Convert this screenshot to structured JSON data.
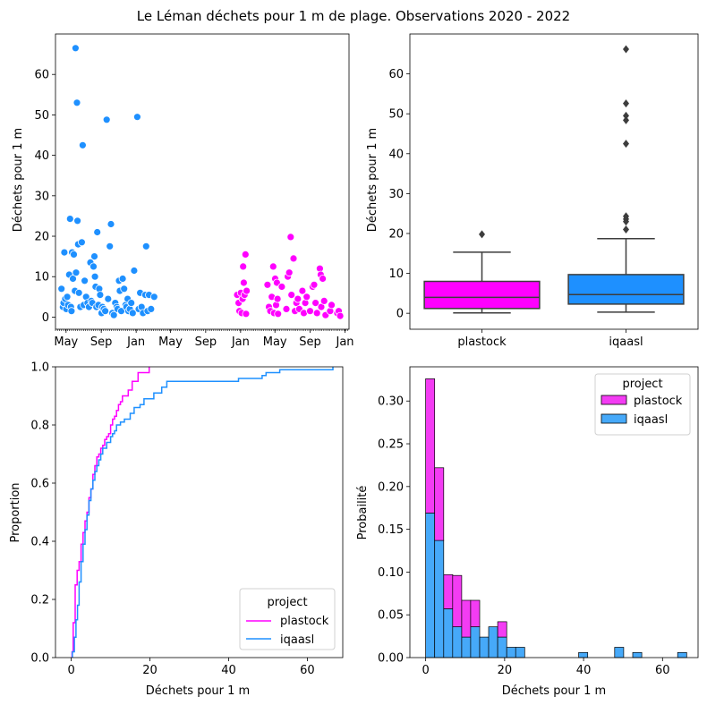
{
  "title": "Le Léman déchets pour 1 m de plage. Observations 2020 - 2022",
  "colors": {
    "plastock": "#ff00ff",
    "iqaasl": "#1e90ff",
    "plastock_fill": "#f33cf3",
    "iqaasl_fill": "#46a9f9"
  },
  "chart_data": [
    {
      "type": "scatter",
      "ylabel": "Déchets pour 1 m",
      "xlabel": "",
      "ylim": [
        -3,
        70
      ],
      "yticks": [
        0,
        10,
        20,
        30,
        40,
        50,
        60
      ],
      "xticks": [
        "May",
        "Sep",
        "Jan",
        "May",
        "Sep",
        "Jan",
        "May",
        "Sep",
        "Jan"
      ],
      "xtick_dates": [
        "2020-05-01",
        "2020-09-01",
        "2021-01-01",
        "2021-05-01",
        "2021-09-01",
        "2022-01-01",
        "2022-05-01",
        "2022-09-01",
        "2023-01-01"
      ],
      "xlim": [
        "2020-03-25",
        "2023-01-15"
      ],
      "grid": false,
      "series": [
        {
          "name": "iqaasl",
          "color": "#1e90ff",
          "points": [
            [
              "2020-04-15",
              7.0
            ],
            [
              "2020-04-20",
              2.5
            ],
            [
              "2020-04-22",
              3.5
            ],
            [
              "2020-04-25",
              16.0
            ],
            [
              "2020-04-28",
              4.5
            ],
            [
              "2020-05-02",
              2.0
            ],
            [
              "2020-05-05",
              5.0
            ],
            [
              "2020-05-08",
              3.0
            ],
            [
              "2020-05-12",
              10.5
            ],
            [
              "2020-05-15",
              24.3
            ],
            [
              "2020-05-18",
              2.5
            ],
            [
              "2020-05-20",
              1.5
            ],
            [
              "2020-05-22",
              16.0
            ],
            [
              "2020-05-25",
              9.5
            ],
            [
              "2020-05-28",
              15.5
            ],
            [
              "2020-06-01",
              6.5
            ],
            [
              "2020-06-03",
              66.5
            ],
            [
              "2020-06-05",
              11.0
            ],
            [
              "2020-06-08",
              53.0
            ],
            [
              "2020-06-10",
              23.8
            ],
            [
              "2020-06-12",
              18.0
            ],
            [
              "2020-06-15",
              6.0
            ],
            [
              "2020-06-20",
              2.5
            ],
            [
              "2020-06-25",
              18.5
            ],
            [
              "2020-06-28",
              42.5
            ],
            [
              "2020-07-02",
              3.0
            ],
            [
              "2020-07-05",
              9.0
            ],
            [
              "2020-07-10",
              5.0
            ],
            [
              "2020-07-15",
              3.5
            ],
            [
              "2020-07-20",
              2.5
            ],
            [
              "2020-07-25",
              13.5
            ],
            [
              "2020-07-28",
              4.0
            ],
            [
              "2020-08-01",
              3.5
            ],
            [
              "2020-08-05",
              12.5
            ],
            [
              "2020-08-08",
              15.0
            ],
            [
              "2020-08-10",
              10.0
            ],
            [
              "2020-08-12",
              7.5
            ],
            [
              "2020-08-15",
              2.5
            ],
            [
              "2020-08-18",
              21.0
            ],
            [
              "2020-08-22",
              3.0
            ],
            [
              "2020-08-25",
              7.0
            ],
            [
              "2020-08-28",
              5.5
            ],
            [
              "2020-09-02",
              1.0
            ],
            [
              "2020-09-05",
              2.5
            ],
            [
              "2020-09-10",
              2.0
            ],
            [
              "2020-09-15",
              1.5
            ],
            [
              "2020-09-20",
              48.8
            ],
            [
              "2020-09-25",
              4.5
            ],
            [
              "2020-10-01",
              17.5
            ],
            [
              "2020-10-05",
              23.0
            ],
            [
              "2020-10-10",
              1.0
            ],
            [
              "2020-10-15",
              0.5
            ],
            [
              "2020-10-20",
              3.5
            ],
            [
              "2020-10-25",
              2.5
            ],
            [
              "2020-10-28",
              2.0
            ],
            [
              "2020-11-02",
              9.0
            ],
            [
              "2020-11-05",
              6.5
            ],
            [
              "2020-11-10",
              1.5
            ],
            [
              "2020-11-15",
              9.5
            ],
            [
              "2020-11-20",
              7.0
            ],
            [
              "2020-11-25",
              3.0
            ],
            [
              "2020-11-28",
              2.5
            ],
            [
              "2020-12-02",
              4.5
            ],
            [
              "2020-12-05",
              1.5
            ],
            [
              "2020-12-10",
              2.0
            ],
            [
              "2020-12-15",
              3.5
            ],
            [
              "2020-12-20",
              1.0
            ],
            [
              "2020-12-25",
              11.5
            ],
            [
              "2021-01-05",
              49.5
            ],
            [
              "2021-01-10",
              2.0
            ],
            [
              "2021-01-15",
              6.0
            ],
            [
              "2021-01-20",
              2.5
            ],
            [
              "2021-01-25",
              1.0
            ],
            [
              "2021-02-02",
              5.5
            ],
            [
              "2021-02-05",
              17.5
            ],
            [
              "2021-02-10",
              1.5
            ],
            [
              "2021-02-15",
              5.5
            ],
            [
              "2021-02-22",
              2.0
            ],
            [
              "2021-03-05",
              5.0
            ]
          ]
        },
        {
          "name": "plastock",
          "color": "#ff00ff",
          "points": [
            [
              "2021-12-20",
              5.5
            ],
            [
              "2021-12-25",
              3.5
            ],
            [
              "2021-12-28",
              1.5
            ],
            [
              "2022-01-02",
              6.0
            ],
            [
              "2022-01-05",
              1.0
            ],
            [
              "2022-01-08",
              4.5
            ],
            [
              "2022-01-10",
              12.5
            ],
            [
              "2022-01-12",
              8.5
            ],
            [
              "2022-01-15",
              5.5
            ],
            [
              "2022-01-18",
              15.5
            ],
            [
              "2022-01-20",
              0.8
            ],
            [
              "2022-01-22",
              6.5
            ],
            [
              "2022-04-05",
              8.0
            ],
            [
              "2022-04-10",
              2.5
            ],
            [
              "2022-04-15",
              1.5
            ],
            [
              "2022-04-20",
              5.0
            ],
            [
              "2022-04-25",
              12.5
            ],
            [
              "2022-04-28",
              1.0
            ],
            [
              "2022-05-02",
              9.5
            ],
            [
              "2022-05-05",
              3.0
            ],
            [
              "2022-05-08",
              8.5
            ],
            [
              "2022-05-10",
              4.5
            ],
            [
              "2022-05-12",
              0.8
            ],
            [
              "2022-05-25",
              7.5
            ],
            [
              "2022-06-10",
              2.0
            ],
            [
              "2022-06-15",
              10.0
            ],
            [
              "2022-06-20",
              11.0
            ],
            [
              "2022-06-25",
              19.8
            ],
            [
              "2022-06-28",
              5.5
            ],
            [
              "2022-07-05",
              14.5
            ],
            [
              "2022-07-10",
              1.5
            ],
            [
              "2022-07-15",
              3.5
            ],
            [
              "2022-07-20",
              4.5
            ],
            [
              "2022-07-25",
              2.0
            ],
            [
              "2022-08-05",
              6.5
            ],
            [
              "2022-08-10",
              1.0
            ],
            [
              "2022-08-15",
              3.5
            ],
            [
              "2022-08-20",
              5.0
            ],
            [
              "2022-09-01",
              1.5
            ],
            [
              "2022-09-10",
              7.5
            ],
            [
              "2022-09-15",
              8.0
            ],
            [
              "2022-09-20",
              3.5
            ],
            [
              "2022-09-25",
              1.0
            ],
            [
              "2022-10-05",
              12.0
            ],
            [
              "2022-10-08",
              10.5
            ],
            [
              "2022-10-10",
              2.5
            ],
            [
              "2022-10-15",
              9.5
            ],
            [
              "2022-10-20",
              4.0
            ],
            [
              "2022-10-25",
              0.5
            ],
            [
              "2022-11-10",
              1.5
            ],
            [
              "2022-11-15",
              3.0
            ],
            [
              "2022-12-05",
              1.0
            ],
            [
              "2022-12-10",
              1.5
            ],
            [
              "2022-12-15",
              0.3
            ]
          ]
        }
      ]
    },
    {
      "type": "box",
      "ylabel": "Déchets pour 1 m",
      "xlabel": "",
      "ylim": [
        -4,
        70
      ],
      "yticks": [
        0,
        10,
        20,
        30,
        40,
        50,
        60
      ],
      "categories": [
        "plastock",
        "iqaasl"
      ],
      "boxes": [
        {
          "name": "plastock",
          "color": "#ff00ff",
          "whislo": 0.1,
          "q1": 1.2,
          "median": 4.0,
          "q3": 8.0,
          "whishi": 15.3,
          "fliers": [
            19.8
          ]
        },
        {
          "name": "iqaasl",
          "color": "#1e90ff",
          "whislo": 0.3,
          "q1": 2.3,
          "median": 4.7,
          "q3": 9.7,
          "whishi": 18.7,
          "fliers": [
            21.0,
            23.0,
            23.6,
            24.3,
            42.5,
            48.4,
            49.5,
            52.6,
            66.2
          ]
        }
      ]
    },
    {
      "type": "line",
      "subtype": "ecdf",
      "xlabel": "Déchets pour 1 m",
      "ylabel": "Proportion",
      "xlim": [
        -4,
        69
      ],
      "ylim": [
        0,
        1.0
      ],
      "xticks": [
        0,
        20,
        40,
        60
      ],
      "yticks": [
        0.0,
        0.2,
        0.4,
        0.6,
        0.8,
        1.0
      ],
      "legend": {
        "title": "project",
        "location": "lower-right"
      },
      "series": [
        {
          "name": "plastock",
          "color": "#ff00ff",
          "x": [
            0.2,
            0.5,
            1.0,
            1.5,
            2.0,
            2.5,
            3.0,
            3.5,
            4.0,
            4.5,
            5.0,
            5.5,
            6.0,
            6.5,
            7.0,
            7.5,
            8.0,
            8.5,
            9.0,
            9.5,
            10.0,
            10.5,
            11.0,
            11.5,
            12.0,
            12.5,
            13.0,
            14.5,
            15.5,
            17.0,
            19.8
          ],
          "y": [
            0.02,
            0.12,
            0.25,
            0.3,
            0.33,
            0.39,
            0.43,
            0.47,
            0.5,
            0.55,
            0.58,
            0.63,
            0.66,
            0.69,
            0.7,
            0.72,
            0.73,
            0.75,
            0.76,
            0.77,
            0.8,
            0.82,
            0.83,
            0.85,
            0.87,
            0.88,
            0.9,
            0.92,
            0.95,
            0.98,
            1.0
          ]
        },
        {
          "name": "iqaasl",
          "color": "#1e90ff",
          "x": [
            0.3,
            0.8,
            1.2,
            1.6,
            2.0,
            2.5,
            3.0,
            3.5,
            4.0,
            4.5,
            5.0,
            5.5,
            6.0,
            6.5,
            7.0,
            7.5,
            8.0,
            9.0,
            10.0,
            10.5,
            11.0,
            11.5,
            12.5,
            13.5,
            15.0,
            16.0,
            17.5,
            18.5,
            21.0,
            23.0,
            24.3,
            42.5,
            48.5,
            49.5,
            53.0,
            66.5
          ],
          "y": [
            0.02,
            0.07,
            0.13,
            0.18,
            0.26,
            0.33,
            0.39,
            0.44,
            0.49,
            0.54,
            0.58,
            0.61,
            0.64,
            0.66,
            0.68,
            0.7,
            0.72,
            0.74,
            0.76,
            0.77,
            0.78,
            0.8,
            0.81,
            0.82,
            0.84,
            0.86,
            0.87,
            0.89,
            0.91,
            0.93,
            0.95,
            0.96,
            0.97,
            0.98,
            0.99,
            1.0
          ]
        }
      ]
    },
    {
      "type": "bar",
      "subtype": "stacked-histogram",
      "xlabel": "Déchets pour 1 m",
      "ylabel": "Probailité",
      "xlim": [
        -4,
        69
      ],
      "ylim": [
        0,
        0.34
      ],
      "xticks": [
        0,
        20,
        40,
        60
      ],
      "yticks": [
        0.0,
        0.05,
        0.1,
        0.15,
        0.2,
        0.25,
        0.3
      ],
      "bin_width": 2.28,
      "bin_start": 0,
      "legend": {
        "title": "project",
        "location": "top-right"
      },
      "series": [
        {
          "name": "iqaasl",
          "color": "#46a9f9",
          "values": [
            0.169,
            0.137,
            0.057,
            0.036,
            0.024,
            0.036,
            0.024,
            0.036,
            0.024,
            0.012,
            0.012,
            0.0,
            0.0,
            0.0,
            0.0,
            0.0,
            0.0,
            0.006,
            0.0,
            0.0,
            0.0,
            0.012,
            0.0,
            0.006,
            0.0,
            0.0,
            0.0,
            0.0,
            0.006
          ]
        },
        {
          "name": "plastock",
          "color": "#f33cf3",
          "values": [
            0.157,
            0.085,
            0.04,
            0.06,
            0.043,
            0.031,
            0.0,
            0.0,
            0.018,
            0.0,
            0.0,
            0.0,
            0.0,
            0.0,
            0.0,
            0.0,
            0.0,
            0.0,
            0.0,
            0.0,
            0.0,
            0.0,
            0.0,
            0.0,
            0.0,
            0.0,
            0.0,
            0.0,
            0.0
          ]
        }
      ]
    }
  ]
}
